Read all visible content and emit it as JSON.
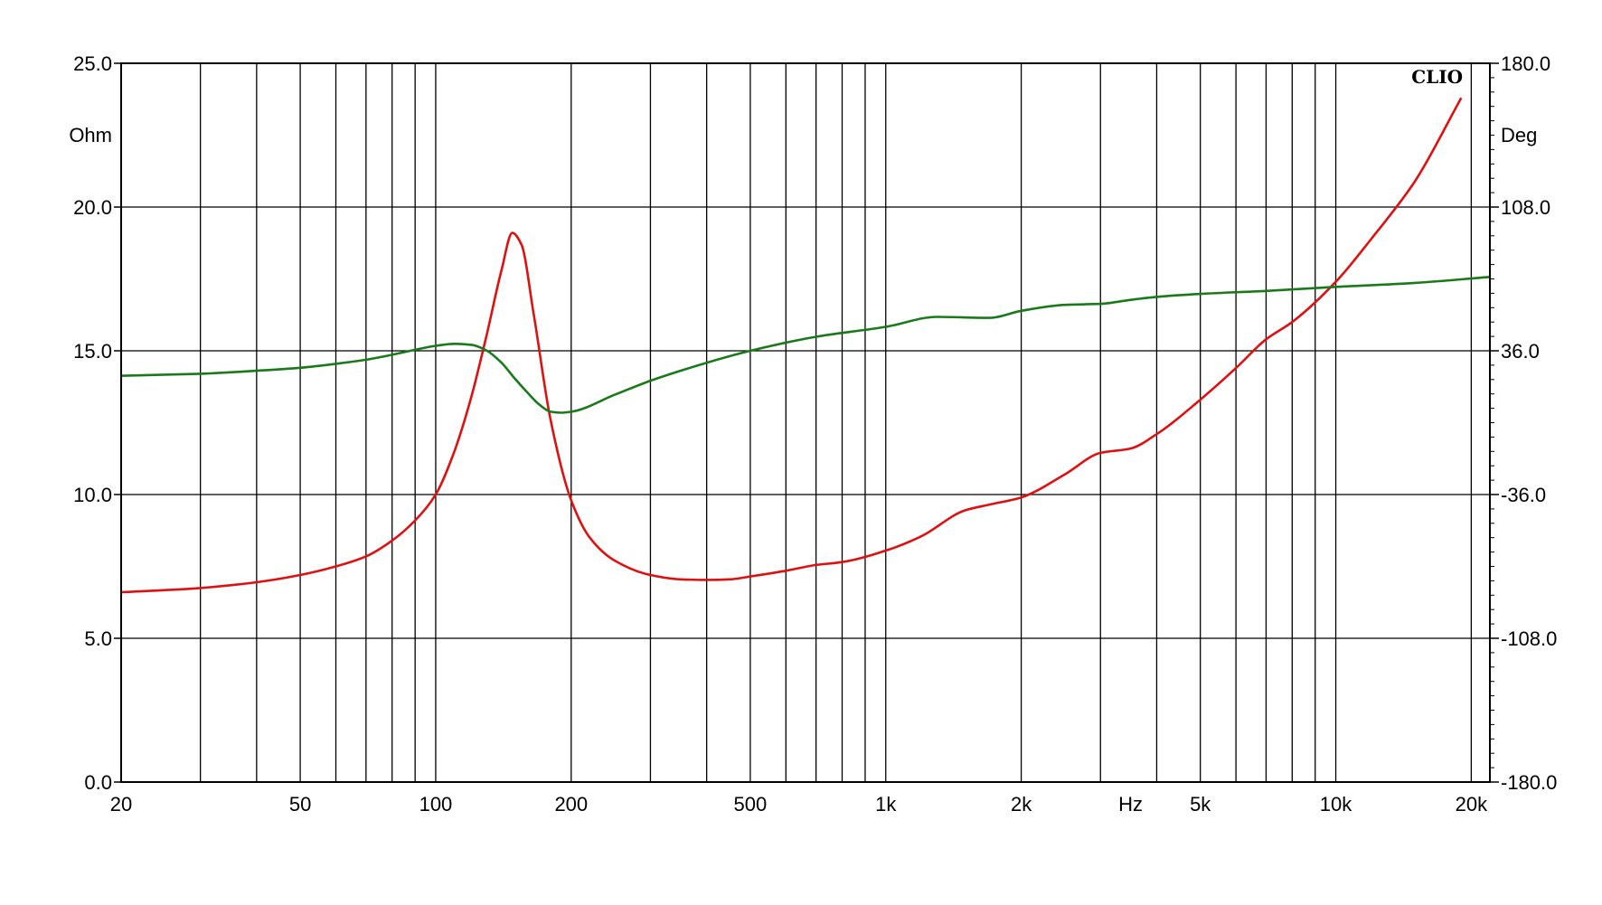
{
  "chart_data": {
    "type": "line",
    "brand": "CLIO",
    "xscale": "log",
    "xlim": [
      20,
      22000
    ],
    "xlabel": "Hz",
    "x_tick_values": [
      20,
      50,
      100,
      200,
      500,
      1000,
      2000,
      5000,
      10000,
      20000
    ],
    "x_tick_labels": [
      "20",
      "50",
      "100",
      "200",
      "500",
      "1k",
      "2k",
      "5k",
      "10k",
      "20k"
    ],
    "x_unit_position": 3500,
    "ylim": [
      0,
      25
    ],
    "ylabel": "Ohm",
    "y_tick_values": [
      0,
      5,
      10,
      15,
      20,
      25
    ],
    "y_tick_labels": [
      "0.0",
      "5.0",
      "10.0",
      "15.0",
      "20.0",
      "25.0"
    ],
    "y2lim": [
      -180,
      180
    ],
    "y2label": "Deg",
    "y2_tick_values": [
      -180,
      -108,
      -36,
      36,
      108,
      180
    ],
    "y2_tick_labels": [
      "-180.0",
      "-108.0",
      "-36.0",
      "36.0",
      "108.0",
      "180.0"
    ],
    "grid": true,
    "series": [
      {
        "axis": "left",
        "color": "#dd1111",
        "x": [
          20,
          30,
          40,
          50,
          60,
          70,
          80,
          90,
          100,
          110,
          120,
          130,
          140,
          148,
          155,
          165,
          180,
          200,
          220,
          250,
          300,
          350,
          400,
          450,
          500,
          600,
          700,
          800,
          1000,
          1200,
          1500,
          1700,
          2000,
          2500,
          3000,
          3500,
          4000,
          5000,
          6000,
          7000,
          8000,
          10000,
          12000,
          15000,
          19000
        ],
        "values": [
          6.6,
          6.75,
          6.95,
          7.2,
          7.5,
          7.85,
          8.4,
          9.1,
          10.0,
          11.5,
          13.4,
          15.6,
          17.8,
          19.1,
          18.7,
          16.3,
          12.6,
          9.8,
          8.5,
          7.7,
          7.2,
          7.05,
          7.03,
          7.05,
          7.15,
          7.35,
          7.55,
          7.65,
          8.05,
          8.55,
          9.45,
          9.65,
          9.9,
          10.7,
          11.45,
          11.6,
          12.1,
          13.3,
          14.4,
          15.4,
          16.0,
          17.4,
          18.9,
          20.9,
          23.8
        ]
      },
      {
        "axis": "right",
        "color": "#1a7a1a",
        "x": [
          20,
          30,
          40,
          50,
          60,
          70,
          80,
          90,
          100,
          110,
          120,
          130,
          140,
          150,
          160,
          170,
          180,
          190,
          200,
          250,
          300,
          400,
          500,
          700,
          1000,
          1300,
          1700,
          2000,
          2500,
          3000,
          3500,
          4000,
          5000,
          7000,
          10000,
          15000,
          22000
        ],
        "values": [
          23.5,
          24.5,
          26,
          27.5,
          29.5,
          31.5,
          34,
          36.5,
          38.5,
          39.5,
          39,
          36,
          30,
          22,
          15,
          9,
          5.5,
          5,
          5.5,
          14,
          21,
          30,
          36,
          43,
          48,
          53,
          52.5,
          56,
          59,
          59.5,
          61.5,
          63,
          64.5,
          66,
          68,
          70,
          73
        ]
      }
    ]
  }
}
